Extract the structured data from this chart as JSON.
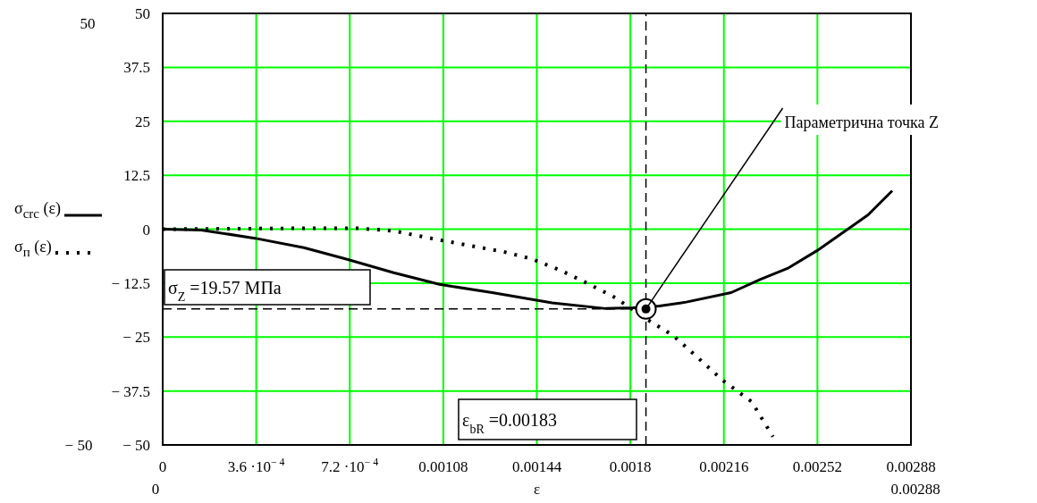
{
  "chart_data": {
    "type": "line",
    "xlabel": "ε",
    "xlim": [
      0,
      0.00288
    ],
    "ylim": [
      -50,
      50
    ],
    "xticks": [
      0,
      {
        "value": 0.00036,
        "label": "3.6 ·10$^{− 4}$"
      },
      {
        "value": 0.00072,
        "label": "7.2 ·10$^{− 4}$"
      },
      0.00108,
      0.00144,
      0.0018,
      0.00216,
      0.00252,
      0.00288
    ],
    "yticks": [
      50,
      37.5,
      25,
      12.5,
      0,
      {
        "value": -12.5,
        "label": "− 12.5"
      },
      {
        "value": -25,
        "label": "− 25"
      },
      {
        "value": -37.5,
        "label": "− 37.5"
      },
      {
        "value": -50,
        "label": "− 50"
      }
    ],
    "grid": true,
    "legend": "left",
    "marker": "none",
    "series": [
      {
        "name": "σ$_{crc}$ (ε)",
        "color": "#000000",
        "line_style": "solid",
        "x": [
          0,
          0.000148,
          0.000355,
          0.000544,
          0.00071,
          0.000889,
          0.001065,
          0.001268,
          0.001499,
          0.001705,
          0.001809,
          0.001912,
          0.002015,
          0.002188,
          0.002301,
          0.002405,
          0.002518,
          0.002611,
          0.002715,
          0.002808
        ],
        "values": [
          0,
          -0.2,
          -2.1,
          -4.3,
          -7,
          -10.1,
          -12.8,
          -14.7,
          -17.1,
          -18.4,
          -18.2,
          -17.8,
          -16.9,
          -14.7,
          -11.6,
          -9.1,
          -5,
          -1.1,
          3.3,
          8.9
        ]
      },
      {
        "name": "σ$_{п}$ (ε)",
        "color": "#000000",
        "line_style": "dotted",
        "x": [
          0,
          0.000544,
          0.000751,
          0.000889,
          0.001065,
          0.001199,
          0.001309,
          0.001416,
          0.00153,
          0.001636,
          0.001743,
          0.001853,
          0.001964,
          0.00206,
          0.002153,
          0.002267,
          0.002349
        ],
        "values": [
          0,
          0.2,
          0.2,
          -0.4,
          -2.5,
          -4,
          -5.2,
          -6.8,
          -9.5,
          -12.6,
          -15.9,
          -20.5,
          -24.6,
          -29.8,
          -34.9,
          -40,
          -48.1
        ]
      },
      {
        "type": "scatter",
        "color": "#000000",
        "marker": "circle",
        "x": [
          0.00186
        ],
        "values": [
          -18.5
        ]
      }
    ],
    "ref_lines": [
      {
        "axis": "x",
        "value": 0.00186,
        "line_style": "dashed",
        "color": "#000000"
      },
      {
        "axis": "y",
        "value": -18.5,
        "line_style": "dashed",
        "color": "#000000"
      }
    ],
    "annotations": [
      {
        "text": "Параметрична точка Z",
        "x": 0.00186,
        "y": -18.5
      },
      "50",
      "− 50",
      "0",
      "0.00288",
      "σ$_{Z}$ =19.57 МПа",
      "ε$_{bR}$ =0.00183"
    ]
  }
}
